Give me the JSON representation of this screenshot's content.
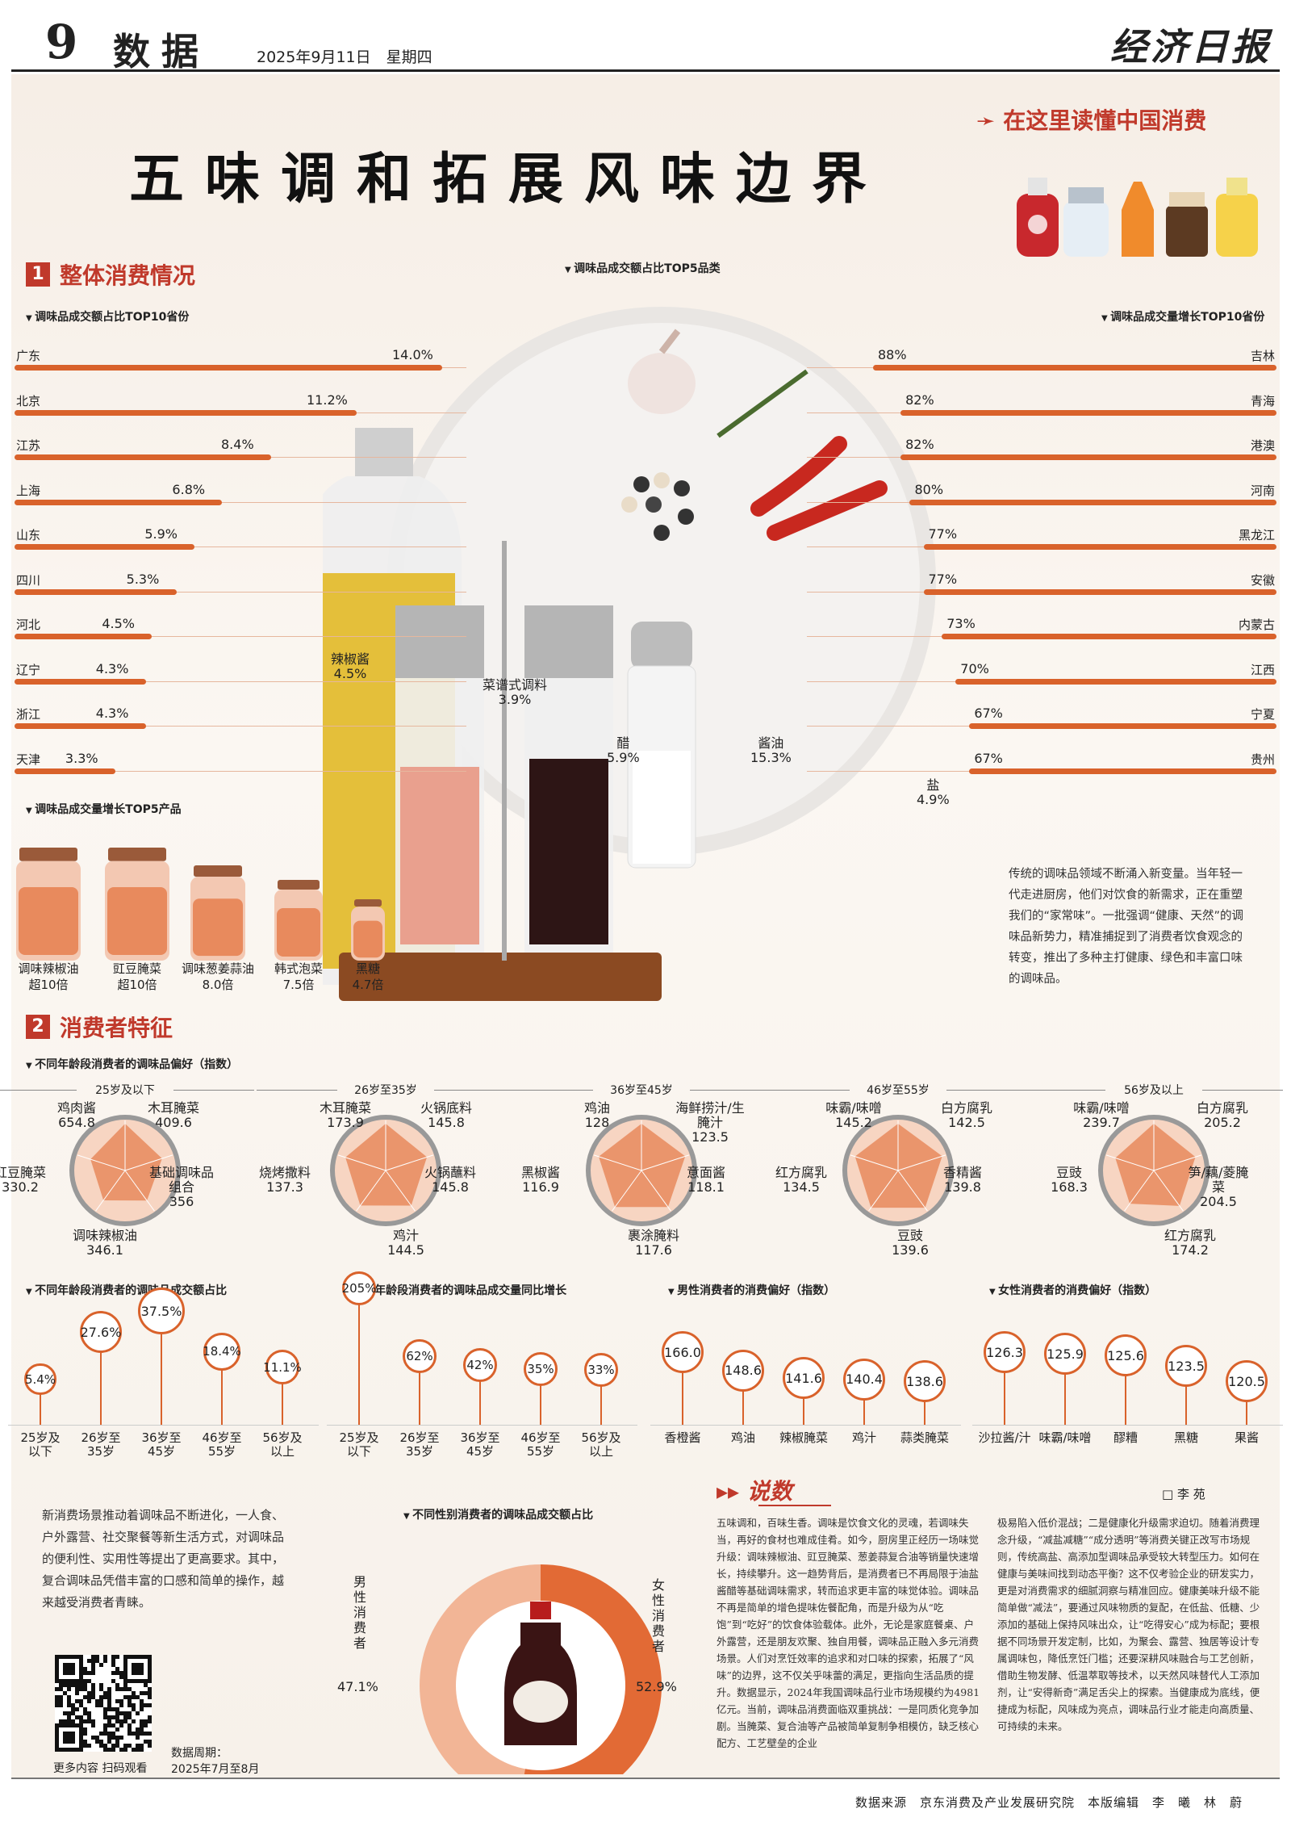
{
  "header": {
    "page_no": "9",
    "section": "数据",
    "date": "2025年9月11日　星期四",
    "masthead": "经济日报"
  },
  "title": "五味调和拓展风味边界",
  "slogan": "在这里读懂中国消费",
  "section1": {
    "num": "1",
    "label": "整体消费情况"
  },
  "section2": {
    "num": "2",
    "label": "消费者特征"
  },
  "subs": {
    "top10_share": "调味品成交额占比TOP10省份",
    "top5_cat": "调味品成交额占比TOP5品类",
    "top10_growth": "调味品成交量增长TOP10省份",
    "top5_products": "调味品成交量增长TOP5产品",
    "age_pref": "不同年龄段消费者的调味品偏好（指数）",
    "age_share": "不同年龄段消费者的调味品成交额占比",
    "age_growth": "不同年龄段消费者的调味品成交量同比增长",
    "male_pref": "男性消费者的消费偏好（指数）",
    "female_pref": "女性消费者的消费偏好（指数）",
    "gender_share": "不同性别消费者的调味品成交额占比"
  },
  "chart_data": [
    {
      "type": "bar",
      "title": "调味品成交额占比TOP10省份",
      "categories": [
        "广东",
        "北京",
        "江苏",
        "上海",
        "山东",
        "四川",
        "河北",
        "辽宁",
        "浙江",
        "天津"
      ],
      "values": [
        14.0,
        11.2,
        8.4,
        6.8,
        5.9,
        5.3,
        4.5,
        4.3,
        4.3,
        3.3
      ],
      "labels": [
        "14.0%",
        "11.2%",
        "8.4%",
        "6.8%",
        "5.9%",
        "5.3%",
        "4.5%",
        "4.3%",
        "4.3%",
        "3.3%"
      ]
    },
    {
      "type": "bar",
      "title": "调味品成交量增长TOP10省份",
      "categories": [
        "吉林",
        "青海",
        "港澳",
        "河南",
        "黑龙江",
        "安徽",
        "内蒙古",
        "江西",
        "宁夏",
        "贵州"
      ],
      "values": [
        88,
        82,
        82,
        80,
        77,
        77,
        73,
        70,
        67,
        67
      ],
      "labels": [
        "88%",
        "82%",
        "82%",
        "80%",
        "77%",
        "77%",
        "73%",
        "70%",
        "67%",
        "67%"
      ]
    },
    {
      "type": "bar",
      "title": "调味品成交额占比TOP5品类",
      "categories": [
        "辣椒酱",
        "菜谱式调料",
        "醋",
        "酱油",
        "盐"
      ],
      "labels": [
        "4.5%",
        "3.9%",
        "5.9%",
        "15.3%",
        "4.9%"
      ],
      "values": [
        4.5,
        3.9,
        5.9,
        15.3,
        4.9
      ]
    },
    {
      "type": "bar",
      "title": "调味品成交量增长TOP5产品",
      "categories": [
        "调味辣椒油",
        "豇豆腌菜",
        "调味葱姜蒜油",
        "韩式泡菜",
        "黑糖"
      ],
      "labels": [
        "超10倍",
        "超10倍",
        "8.0倍",
        "7.5倍",
        "4.7倍"
      ],
      "values": [
        10,
        10,
        8.0,
        7.5,
        4.7
      ]
    },
    {
      "type": "radar",
      "title": "25岁及以下",
      "categories": [
        "鸡肉酱",
        "木耳腌菜",
        "基础调味品组合",
        "调味辣椒油",
        "豇豆腌菜"
      ],
      "values": [
        654.8,
        409.6,
        356.0,
        346.1,
        330.2
      ]
    },
    {
      "type": "radar",
      "title": "26岁至35岁",
      "categories": [
        "木耳腌菜",
        "火锅底料",
        "火锅蘸料",
        "鸡汁",
        "烧烤撒料"
      ],
      "values": [
        173.9,
        145.8,
        145.8,
        144.5,
        137.3
      ]
    },
    {
      "type": "radar",
      "title": "36岁至45岁",
      "categories": [
        "鸡油",
        "海鲜捞汁/生腌汁",
        "意面酱",
        "裹涂腌料",
        "黑椒酱"
      ],
      "values": [
        128.0,
        123.5,
        118.1,
        117.6,
        116.9
      ]
    },
    {
      "type": "radar",
      "title": "46岁至55岁",
      "categories": [
        "味霸/味噌",
        "白方腐乳",
        "香精酱",
        "豆豉",
        "红方腐乳"
      ],
      "values": [
        145.2,
        142.5,
        139.8,
        139.6,
        134.5
      ]
    },
    {
      "type": "radar",
      "title": "56岁及以上",
      "categories": [
        "味霸/味噌",
        "白方腐乳",
        "笋/藕/菱腌菜",
        "红方腐乳",
        "豆豉"
      ],
      "values": [
        239.7,
        205.2,
        204.5,
        174.2,
        168.3
      ]
    },
    {
      "type": "bar",
      "title": "不同年龄段消费者的调味品成交额占比",
      "categories": [
        "25岁及以下",
        "26岁至35岁",
        "36岁至45岁",
        "46岁至55岁",
        "56岁及以上"
      ],
      "values": [
        5.4,
        27.6,
        37.5,
        18.4,
        11.1
      ],
      "labels": [
        "5.4%",
        "27.6%",
        "37.5%",
        "18.4%",
        "11.1%"
      ]
    },
    {
      "type": "bar",
      "title": "不同年龄段消费者的调味品成交量同比增长",
      "categories": [
        "25岁及以下",
        "26岁至35岁",
        "36岁至45岁",
        "46岁至55岁",
        "56岁及以上"
      ],
      "values": [
        205,
        62,
        42,
        35,
        33
      ],
      "labels": [
        "205%",
        "62%",
        "42%",
        "35%",
        "33%"
      ]
    },
    {
      "type": "bar",
      "title": "男性消费者的消费偏好（指数）",
      "categories": [
        "香橙酱",
        "鸡油",
        "辣椒腌菜",
        "鸡汁",
        "蒜类腌菜"
      ],
      "values": [
        166.0,
        148.6,
        141.6,
        140.4,
        138.6
      ],
      "labels": [
        "166.0",
        "148.6",
        "141.6",
        "140.4",
        "138.6"
      ]
    },
    {
      "type": "bar",
      "title": "女性消费者的消费偏好（指数）",
      "categories": [
        "沙拉酱/汁",
        "味霸/味噌",
        "醪糟",
        "黑糖",
        "果酱"
      ],
      "values": [
        126.3,
        125.9,
        125.6,
        123.5,
        120.5
      ],
      "labels": [
        "126.3",
        "125.9",
        "125.6",
        "123.5",
        "120.5"
      ]
    },
    {
      "type": "pie",
      "title": "不同性别消费者的调味品成交额占比",
      "categories": [
        "男性消费者",
        "女性消费者"
      ],
      "values": [
        47.1,
        52.9
      ],
      "labels": [
        "47.1%",
        "52.9%"
      ]
    }
  ],
  "age_groups": [
    "25岁及以下",
    "26岁至35岁",
    "36岁至45岁",
    "46岁至55岁",
    "56岁及以上"
  ],
  "age_short": [
    [
      "25岁及",
      "以下"
    ],
    [
      "26岁至",
      "35岁"
    ],
    [
      "36岁至",
      "45岁"
    ],
    [
      "46岁至",
      "55岁"
    ],
    [
      "56岁及",
      "以上"
    ]
  ],
  "intro_text": "传统的调味品领域不断涌入新变量。当年轻一代走进厨房，他们对饮食的新需求，正在重塑我们的“家常味”。一批强调“健康、天然”的调味品新势力，精准捕捉到了消费者饮食观念的转变，推出了多种主打健康、绿色和丰富口味的调味品。",
  "left_text": "新消费场景推动着调味品不断进化，一人食、户外露营、社交聚餐等新生活方式，对调味品的便利性、实用性等提出了更高要求。其中，复合调味品凭借丰富的口感和简单的操作，越来越受消费者青睐。",
  "gender": {
    "male": "男性消费者",
    "female": "女性消费者",
    "male_v": "47.1%",
    "female_v": "52.9%"
  },
  "commentary": {
    "heading": "说数",
    "author": "□ 李 苑",
    "col1": "五味调和，百味生香。调味是饮食文化的灵魂，若调味失当，再好的食材也难成佳肴。如今，厨房里正经历一场味觉升级：调味辣椒油、豇豆腌菜、葱姜蒜复合油等销量快速增长，持续攀升。这一趋势背后，是消费者已不再局限于油盐酱醋等基础调味需求，转而追求更丰富的味觉体验。调味品不再是简单的增色提味佐餐配角，而是升级为从“吃饱”到“吃好”的饮食体验载体。此外，无论是家庭餐桌、户外露营，还是朋友欢聚、独自用餐，调味品正融入多元消费场景。人们对烹饪效率的追求和对口味的探索，拓展了“风味”的边界，这不仅关乎味蕾的满足，更指向生活品质的提升。数据显示，2024年我国调味品行业市场规模约为4981亿元。当前，调味品消费面临双重挑战：一是同质化竞争加剧。当腌菜、复合油等产品被简单复制争相模仿，缺乏核心配方、工艺壁垒的企业",
    "col2": "极易陷入低价混战；二是健康化升级需求迫切。随着消费理念升级，“减盐减糖”“成分透明”等消费关键正改写市场规则，传统高盐、高添加型调味品承受较大转型压力。如何在健康与美味间找到动态平衡？这不仅考验企业的研发实力，更是对消费需求的细腻洞察与精准回应。健康美味升级不能简单做“减法”，要通过风味物质的复配，在低盐、低糖、少添加的基础上保持风味出众，让“吃得安心”成为标配；要根据不同场景开发定制，比如，为聚会、露营、独居等设计专属调味包，降低烹饪门槛；还要深耕风味融合与工艺创新，借助生物发酵、低温萃取等技术，以天然风味替代人工添加剂，让“安得新奇”满足舌尖上的探索。当健康成为底线，便捷成为标配，风味成为亮点，调味品行业才能走向高质量、可持续的未来。"
  },
  "qr": {
    "caption": "更多内容 扫码观看"
  },
  "period": {
    "label": "数据周期：",
    "value": "2025年7月至8月"
  },
  "footer": "数据来源　京东消费及产业发展研究院　本版编辑　李　曦　林　蔚",
  "colors": {
    "accent": "#d9622b",
    "red": "#c0392b",
    "bg": "#f6eee6"
  }
}
